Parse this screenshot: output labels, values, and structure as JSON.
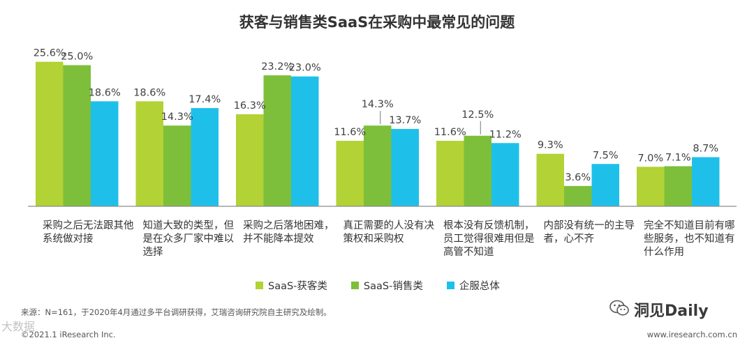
{
  "chart_data": {
    "type": "bar",
    "title": "获客与销售类SaaS在采购中最常见的问题",
    "categories": [
      "采购之后无法跟其他系统做对接",
      "知道大致的类型，但是在众多厂家中难以选择",
      "采购之后落地困难，并不能降本提效",
      "真正需要的人没有决策权和采购权",
      "根本没有反馈机制，员工觉得很难用但是高管不知道",
      "内部没有统一的主导者，心不齐",
      "完全不知道目前有哪些服务，也不知道有什么作用"
    ],
    "series": [
      {
        "name": "SaaS-获客类",
        "color": "#b2d235",
        "values": [
          25.6,
          18.6,
          16.3,
          11.6,
          11.6,
          9.3,
          7.0
        ]
      },
      {
        "name": "SaaS-销售类",
        "color": "#7dbf3a",
        "values": [
          25.0,
          14.3,
          23.2,
          14.3,
          12.5,
          3.6,
          7.1
        ]
      },
      {
        "name": "企服总体",
        "color": "#1ec0ea",
        "values": [
          18.6,
          17.4,
          23.0,
          13.7,
          11.2,
          7.5,
          8.7
        ]
      }
    ],
    "value_suffix": "%",
    "ylim": [
      0,
      30
    ],
    "xlabel": "",
    "ylabel": ""
  },
  "source": "来源：N=161，于2020年4月通过多平台调研获得，艾瑞咨询研究院自主研究及绘制。",
  "copyright": "©2021.1 iResearch Inc.",
  "site_url": "www.iresearch.com.cn",
  "watermark": {
    "wechat_icon": "wechat-icon",
    "wechat_text": "洞见Daily",
    "left_text": "大数据"
  }
}
